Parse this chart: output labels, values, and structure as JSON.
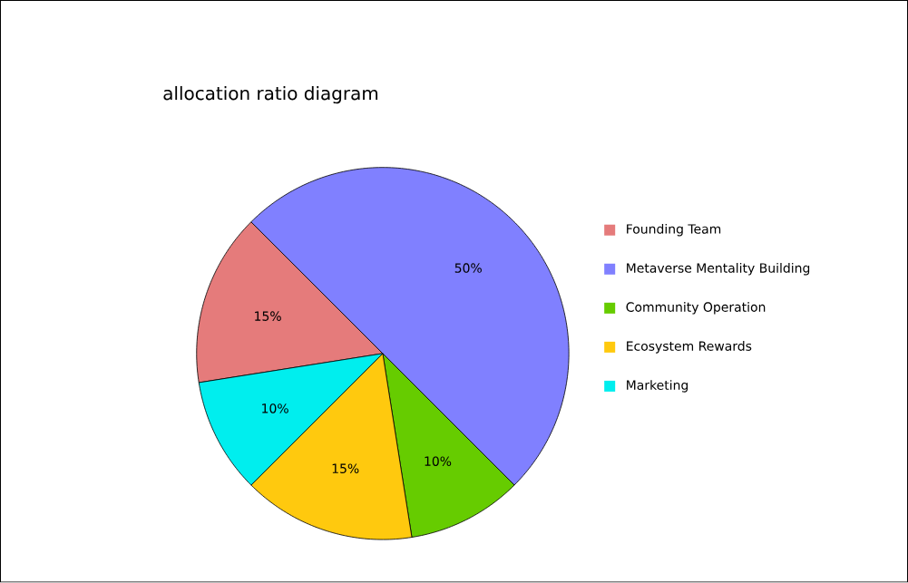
{
  "chart_data": {
    "type": "pie",
    "title": "allocation ratio diagram",
    "categories": [
      "Founding Team",
      "Metaverse Mentality Building",
      "Community Operation",
      "Ecosystem Rewards",
      "Marketing"
    ],
    "values": [
      15,
      50,
      10,
      15,
      10
    ],
    "value_labels": [
      "15%",
      "50%",
      "10%",
      "15%",
      "10%"
    ],
    "colors": [
      "#e57b7b",
      "#8080ff",
      "#66cc00",
      "#ffc90e",
      "#00eeee"
    ],
    "legend": "right"
  }
}
